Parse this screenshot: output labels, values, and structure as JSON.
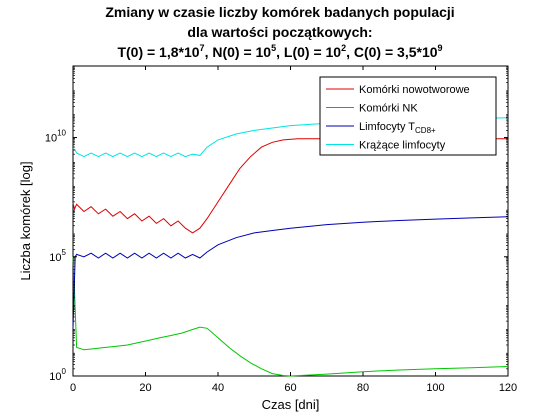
{
  "chart_data": {
    "type": "line",
    "title": [
      "Zmiany w czasie liczby komórek badanych populacji",
      "dla wartości początkowych:",
      "T(0) = 1,8*10^7, N(0) = 10^5, L(0) = 10^2, C(0) = 3,5*10^9"
    ],
    "xlabel": "Czas [dni]",
    "ylabel": "Liczba komórek [log]",
    "xlim": [
      0,
      120
    ],
    "ylim_log10": [
      0,
      13
    ],
    "y_scale": "log",
    "x_ticks": [
      0,
      20,
      40,
      60,
      80,
      100,
      120
    ],
    "y_ticks_log10": [
      0,
      5,
      10
    ],
    "grid": false,
    "legend_position": "top-right",
    "series": [
      {
        "name": "Komórki nowotworowe",
        "color": "#e00000",
        "x": [
          0,
          0.4,
          1,
          3,
          5,
          7,
          9,
          11,
          13,
          15,
          17,
          19,
          21,
          23,
          25,
          27,
          29,
          31,
          33,
          35,
          37,
          40,
          43,
          46,
          49,
          52,
          55,
          58,
          62,
          70,
          80,
          90,
          100,
          110,
          120
        ],
        "log10_y": [
          7.26,
          7.0,
          7.2,
          6.9,
          7.1,
          6.8,
          7.0,
          6.7,
          6.9,
          6.6,
          6.8,
          6.5,
          6.7,
          6.4,
          6.6,
          6.3,
          6.5,
          6.2,
          6.0,
          6.2,
          6.6,
          7.3,
          8.0,
          8.7,
          9.2,
          9.6,
          9.8,
          9.9,
          9.95,
          9.95,
          9.95,
          9.95,
          9.95,
          9.95,
          9.95
        ]
      },
      {
        "name": "Komórki NK",
        "color": "#00c800",
        "x": [
          0,
          0.3,
          0.6,
          1,
          3,
          6,
          9,
          12,
          15,
          18,
          21,
          24,
          27,
          30,
          33,
          35,
          37,
          40,
          43,
          46,
          49,
          52,
          55,
          58,
          60,
          70,
          80,
          90,
          100,
          110,
          120
        ],
        "log10_y": [
          5.0,
          4.0,
          2.8,
          1.2,
          1.1,
          1.15,
          1.2,
          1.25,
          1.3,
          1.4,
          1.5,
          1.6,
          1.7,
          1.8,
          1.95,
          2.05,
          2.0,
          1.6,
          1.2,
          0.85,
          0.55,
          0.3,
          0.1,
          0.02,
          0.0,
          0.08,
          0.18,
          0.25,
          0.3,
          0.35,
          0.4
        ]
      },
      {
        "name": "Limfocyty T",
        "name_subscript": "CD8+",
        "color": "#0000b4",
        "x": [
          0,
          0.3,
          0.6,
          1,
          3,
          5,
          7,
          9,
          11,
          13,
          15,
          17,
          19,
          21,
          23,
          25,
          27,
          29,
          31,
          33,
          35,
          37,
          40,
          45,
          50,
          55,
          60,
          70,
          80,
          90,
          100,
          110,
          120
        ],
        "log10_y": [
          2.0,
          3.5,
          5.0,
          5.1,
          5.0,
          5.15,
          4.95,
          5.15,
          4.95,
          5.15,
          4.95,
          5.15,
          4.95,
          5.15,
          4.95,
          5.15,
          4.95,
          5.15,
          4.95,
          5.1,
          4.95,
          5.2,
          5.5,
          5.8,
          6.0,
          6.1,
          6.2,
          6.35,
          6.45,
          6.52,
          6.58,
          6.63,
          6.68
        ]
      },
      {
        "name": "Krążące limfocyty",
        "color": "#00e5e5",
        "x": [
          0,
          0.5,
          1,
          3,
          5,
          7,
          9,
          11,
          13,
          15,
          17,
          19,
          21,
          23,
          25,
          27,
          29,
          31,
          33,
          35,
          37,
          40,
          45,
          50,
          55,
          60,
          70,
          80,
          90,
          100,
          110,
          120
        ],
        "log10_y": [
          9.54,
          9.5,
          9.35,
          9.2,
          9.35,
          9.2,
          9.35,
          9.2,
          9.35,
          9.2,
          9.35,
          9.2,
          9.35,
          9.2,
          9.35,
          9.2,
          9.35,
          9.2,
          9.3,
          9.25,
          9.6,
          9.9,
          10.15,
          10.3,
          10.4,
          10.5,
          10.6,
          10.68,
          10.73,
          10.77,
          10.8,
          10.83
        ]
      }
    ]
  }
}
